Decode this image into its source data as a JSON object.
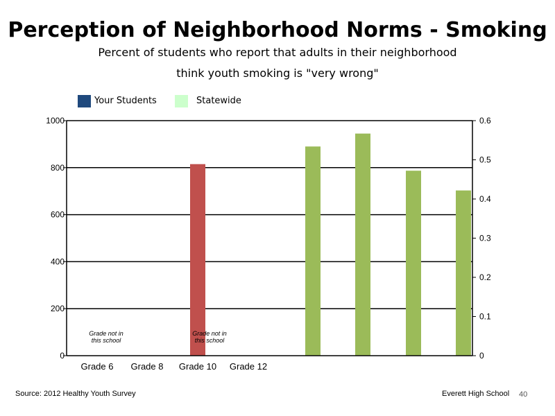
{
  "slide": {
    "title": "Perception of Neighborhood Norms - Smoking",
    "subtitle_line1": "Percent of students who report that adults in their neighborhood",
    "subtitle_line2": "think youth smoking is \"very wrong\"",
    "source": "Source: 2012 Healthy Youth Survey",
    "school": "Everett High School",
    "page_number": "40"
  },
  "chart_data": {
    "type": "bar",
    "legend": [
      {
        "label": "Your Students",
        "color": "#1f497d"
      },
      {
        "label": "Statewide",
        "color": "#ccffcc"
      }
    ],
    "categories": [
      "Grade 6",
      "Grade 8",
      "Grade 10",
      "Grade 12"
    ],
    "annotations": [
      {
        "category": "Grade 6",
        "text_line1": "Grade not in",
        "text_line2": "this school"
      },
      {
        "category": "Grade 10",
        "text_line1": "Grade not in",
        "text_line2": "this school"
      }
    ],
    "ylim_left": [
      0,
      1000
    ],
    "yticks_left": [
      0,
      200,
      400,
      600,
      800,
      1000
    ],
    "ylim_right": [
      0,
      0.6
    ],
    "yticks_right": [
      0,
      0.1,
      0.2,
      0.3,
      0.4,
      0.5,
      0.6
    ],
    "bars": [
      {
        "value": 815,
        "axis": "left",
        "color": "#c0504d"
      },
      {
        "value": 890,
        "axis": "left",
        "color": "#9bbb59"
      },
      {
        "value": 945,
        "axis": "left",
        "color": "#9bbb59"
      },
      {
        "value": 787,
        "axis": "left",
        "color": "#9bbb59"
      },
      {
        "value": 703,
        "axis": "left",
        "color": "#9bbb59"
      }
    ],
    "grid": "horizontal major lines"
  }
}
